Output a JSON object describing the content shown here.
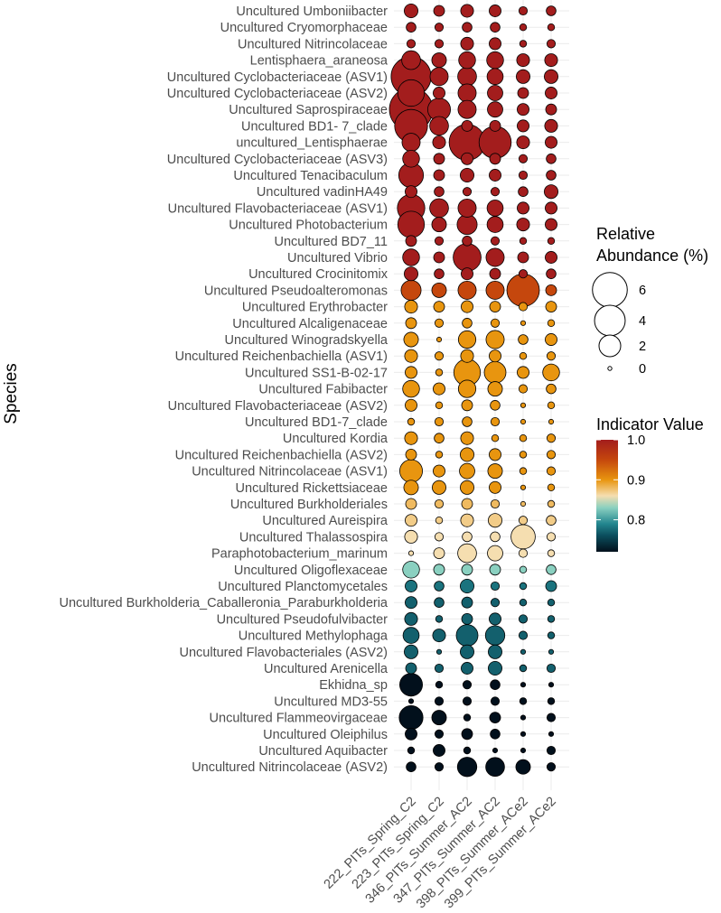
{
  "chart_data": {
    "type": "scatter",
    "subtype": "bubble",
    "ylabel": "Species",
    "samples": [
      "222_PITs_Spring_C2",
      "223_PITs_Spring_C2",
      "346_PITs_Summer_AC2",
      "347_PITs_Summer_AC2",
      "398_PITs_Summer_ACe2",
      "399_PITs_Summer_ACe2"
    ],
    "species": [
      {
        "name": "Uncultured Umboniibacter",
        "indicator": 1.0,
        "abundance": [
          0.8,
          0.5,
          0.7,
          0.6,
          0.3,
          0.4
        ]
      },
      {
        "name": "Uncultured Cryomorphaceae",
        "indicator": 1.0,
        "abundance": [
          0.4,
          0.3,
          0.4,
          0.4,
          0.2,
          0.2
        ]
      },
      {
        "name": "Uncultured Nitrincolaceae",
        "indicator": 1.0,
        "abundance": [
          0.3,
          0.3,
          0.7,
          0.6,
          0.2,
          0.3
        ]
      },
      {
        "name": "Lentisphaera_araneosa",
        "indicator": 1.0,
        "abundance": [
          1.5,
          0.9,
          1.2,
          1.2,
          0.7,
          0.7
        ]
      },
      {
        "name": "Uncultured Cyclobacteriaceae (ASV1)",
        "indicator": 1.0,
        "abundance": [
          6.8,
          1.4,
          1.5,
          1.1,
          0.8,
          0.8
        ]
      },
      {
        "name": "Uncultured Cyclobacteriaceae (ASV2)",
        "indicator": 1.0,
        "abundance": [
          3.0,
          0.6,
          1.4,
          1.0,
          0.5,
          0.6
        ]
      },
      {
        "name": "Uncultured Saprospiraceae",
        "indicator": 1.0,
        "abundance": [
          8.0,
          2.2,
          1.4,
          1.0,
          0.6,
          0.5
        ]
      },
      {
        "name": "Uncultured BD1- 7_clade",
        "indicator": 1.0,
        "abundance": [
          4.6,
          1.5,
          0.5,
          0.5,
          0.6,
          0.7
        ]
      },
      {
        "name": "uncultured_Lentisphaerae",
        "indicator": 1.0,
        "abundance": [
          1.4,
          0.7,
          5.5,
          4.4,
          0.7,
          0.6
        ]
      },
      {
        "name": "Uncultured Cyclobacteriaceae (ASV3)",
        "indicator": 1.0,
        "abundance": [
          1.2,
          0.5,
          0.6,
          0.5,
          0.3,
          0.4
        ]
      },
      {
        "name": "Uncultured Tenacibaculum",
        "indicator": 1.0,
        "abundance": [
          2.6,
          0.5,
          0.8,
          0.6,
          0.3,
          0.4
        ]
      },
      {
        "name": "Uncultured vadinHA49",
        "indicator": 1.0,
        "abundance": [
          0.6,
          0.4,
          0.3,
          0.3,
          0.4,
          0.8
        ]
      },
      {
        "name": "Uncultured Flavobacteriaceae (ASV1)",
        "indicator": 1.0,
        "abundance": [
          3.2,
          1.5,
          1.4,
          1.1,
          0.6,
          0.6
        ]
      },
      {
        "name": "Uncultured Photobacterium",
        "indicator": 1.0,
        "abundance": [
          3.0,
          0.9,
          1.7,
          1.1,
          0.7,
          0.6
        ]
      },
      {
        "name": "Uncultured BD7_11",
        "indicator": 1.0,
        "abundance": [
          0.5,
          0.3,
          0.4,
          0.3,
          0.2,
          0.2
        ]
      },
      {
        "name": "Uncultured Vibrio",
        "indicator": 1.0,
        "abundance": [
          1.2,
          0.5,
          3.3,
          1.4,
          0.5,
          0.6
        ]
      },
      {
        "name": "Uncultured Crocinitomix",
        "indicator": 1.0,
        "abundance": [
          0.8,
          0.4,
          0.6,
          0.5,
          0.3,
          0.4
        ]
      },
      {
        "name": "Uncultured Pseudoalteromonas",
        "indicator": 0.95,
        "abundance": [
          1.7,
          0.9,
          1.4,
          1.4,
          4.5,
          0.5
        ]
      },
      {
        "name": "Uncultured Erythrobacter",
        "indicator": 0.9,
        "abundance": [
          0.7,
          0.5,
          0.6,
          0.5,
          0.3,
          0.5
        ]
      },
      {
        "name": "Uncultured Alcaligenaceae",
        "indicator": 0.9,
        "abundance": [
          0.5,
          0.3,
          0.4,
          0.3,
          0.1,
          0.2
        ]
      },
      {
        "name": "Uncultured Winogradskyella",
        "indicator": 0.9,
        "abundance": [
          0.9,
          0.1,
          1.3,
          1.4,
          0.4,
          0.6
        ]
      },
      {
        "name": "Uncultured Reichenbachiella (ASV1)",
        "indicator": 0.9,
        "abundance": [
          0.7,
          0.3,
          0.7,
          0.6,
          0.2,
          0.3
        ]
      },
      {
        "name": "Uncultured SS1-B-02-17",
        "indicator": 0.9,
        "abundance": [
          0.6,
          0.2,
          3.0,
          2.0,
          0.6,
          1.2
        ]
      },
      {
        "name": "Uncultured Fabibacter",
        "indicator": 0.9,
        "abundance": [
          1.2,
          0.6,
          1.3,
          0.9,
          0.3,
          0.4
        ]
      },
      {
        "name": "Uncultured Flavobacteriaceae (ASV2)",
        "indicator": 0.9,
        "abundance": [
          0.6,
          0.2,
          0.5,
          0.4,
          0.1,
          0.2
        ]
      },
      {
        "name": "Uncultured BD1-7_clade",
        "indicator": 0.9,
        "abundance": [
          0.2,
          0.3,
          0.4,
          0.3,
          0.1,
          0.1
        ]
      },
      {
        "name": "Uncultured Kordia",
        "indicator": 0.9,
        "abundance": [
          0.7,
          0.4,
          0.7,
          0.2,
          0.2,
          0.3
        ]
      },
      {
        "name": "Uncultured Reichenbachiella (ASV2)",
        "indicator": 0.9,
        "abundance": [
          0.5,
          0.2,
          0.8,
          0.6,
          0.2,
          0.3
        ]
      },
      {
        "name": "Uncultured Nitrincolaceae (ASV1)",
        "indicator": 0.9,
        "abundance": [
          2.2,
          0.6,
          1.0,
          0.9,
          0.2,
          0.3
        ]
      },
      {
        "name": "Uncultured Rickettsiaceae",
        "indicator": 0.9,
        "abundance": [
          0.9,
          0.8,
          0.8,
          0.6,
          0.1,
          0.2
        ]
      },
      {
        "name": "Uncultured Burkholderiales",
        "indicator": 0.88,
        "abundance": [
          0.5,
          0.3,
          0.5,
          0.3,
          0.1,
          0.2
        ]
      },
      {
        "name": "Uncultured Aureispira",
        "indicator": 0.87,
        "abundance": [
          0.6,
          0.2,
          0.7,
          0.8,
          0.3,
          0.4
        ]
      },
      {
        "name": "Uncultured Thalassospira",
        "indicator": 0.86,
        "abundance": [
          0.7,
          0.3,
          0.4,
          0.4,
          2.5,
          0.3
        ]
      },
      {
        "name": "Paraphotobacterium_marinum",
        "indicator": 0.86,
        "abundance": [
          0.1,
          0.5,
          1.5,
          1.0,
          0.3,
          0.2
        ]
      },
      {
        "name": "Uncultured Oligoflexaceae",
        "indicator": 0.83,
        "abundance": [
          1.2,
          0.5,
          0.5,
          0.5,
          0.2,
          0.4
        ]
      },
      {
        "name": "Uncultured Planctomycetales",
        "indicator": 0.78,
        "abundance": [
          0.6,
          0.4,
          0.8,
          0.3,
          0.2,
          0.5
        ]
      },
      {
        "name": "Uncultured Burkholderia_Caballeronia_Paraburkholderia",
        "indicator": 0.77,
        "abundance": [
          0.6,
          0.4,
          0.5,
          0.3,
          0.2,
          0.2
        ]
      },
      {
        "name": "Uncultured Pseudofulvibacter",
        "indicator": 0.77,
        "abundance": [
          0.7,
          0.2,
          0.5,
          0.6,
          0.3,
          0.2
        ]
      },
      {
        "name": "Uncultured Methylophaga",
        "indicator": 0.77,
        "abundance": [
          1.1,
          0.7,
          2.0,
          1.6,
          0.3,
          0.2
        ]
      },
      {
        "name": "Uncultured Flavobacteriales (ASV2)",
        "indicator": 0.77,
        "abundance": [
          0.8,
          0.1,
          0.8,
          0.8,
          0.1,
          0.1
        ]
      },
      {
        "name": "Uncultured Arenicella",
        "indicator": 0.77,
        "abundance": [
          0.5,
          0.3,
          0.6,
          0.8,
          0.2,
          0.3
        ]
      },
      {
        "name": "Ekhidna_sp",
        "indicator": 0.72,
        "abundance": [
          2.2,
          0.2,
          0.3,
          0.4,
          0.1,
          0.1
        ]
      },
      {
        "name": "Uncultured MD3-55",
        "indicator": 0.72,
        "abundance": [
          0.1,
          0.3,
          0.3,
          0.3,
          0.2,
          0.2
        ]
      },
      {
        "name": "Uncultured Flammeovirgaceae",
        "indicator": 0.72,
        "abundance": [
          2.4,
          0.9,
          0.2,
          0.5,
          0.1,
          0.3
        ]
      },
      {
        "name": "Uncultured Oleiphilus",
        "indicator": 0.72,
        "abundance": [
          0.6,
          0.3,
          0.5,
          0.4,
          0.1,
          0.1
        ]
      },
      {
        "name": "Uncultured Aquibacter",
        "indicator": 0.72,
        "abundance": [
          0.2,
          0.6,
          0.2,
          0.1,
          0.1,
          0.3
        ]
      },
      {
        "name": "Uncultured Nitrincolaceae (ASV2)",
        "indicator": 0.72,
        "abundance": [
          0.4,
          0.3,
          1.6,
          1.5,
          0.9,
          0.3
        ]
      }
    ],
    "size_legend": {
      "title_line1": "Relative",
      "title_line2": "Abundance (%)",
      "values": [
        6,
        4,
        2,
        0
      ],
      "labels": [
        "6",
        "4",
        "2",
        "0"
      ]
    },
    "color_legend": {
      "title": "Indicator Value",
      "range": [
        0.72,
        1.0
      ],
      "tick_values": [
        1.0,
        0.9,
        0.8
      ],
      "tick_labels": [
        "1.0",
        "0.9",
        "0.8"
      ],
      "gradient_stops": [
        {
          "v": 0.72,
          "color": "#02101c"
        },
        {
          "v": 0.76,
          "color": "#0b4d5c"
        },
        {
          "v": 0.79,
          "color": "#23868f"
        },
        {
          "v": 0.83,
          "color": "#8ad0c0"
        },
        {
          "v": 0.86,
          "color": "#f5deb0"
        },
        {
          "v": 0.9,
          "color": "#e8950f"
        },
        {
          "v": 0.95,
          "color": "#c5470d"
        },
        {
          "v": 1.0,
          "color": "#a31d1d"
        }
      ]
    }
  }
}
